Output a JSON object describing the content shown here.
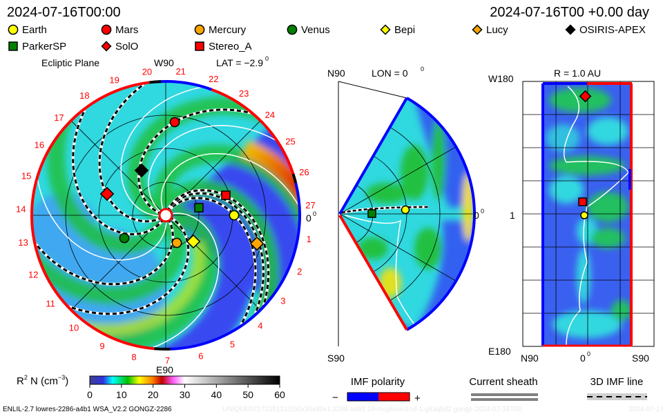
{
  "header": {
    "datetime_left": "2024-07-16T00:00",
    "datetime_right": "2024-07-16T00 +0.00 day"
  },
  "legend": {
    "items": [
      {
        "label": "Earth",
        "shape": "circle",
        "color": "#ffff00"
      },
      {
        "label": "Mars",
        "shape": "circle",
        "color": "#ff0000"
      },
      {
        "label": "Mercury",
        "shape": "circle",
        "color": "#ffa500"
      },
      {
        "label": "Venus",
        "shape": "circle",
        "color": "#008000"
      },
      {
        "label": "Bepi",
        "shape": "diamond",
        "color": "#ffff00"
      },
      {
        "label": "Lucy",
        "shape": "diamond",
        "color": "#ffa500"
      },
      {
        "label": "OSIRIS-APEX",
        "shape": "diamond",
        "color": "#000000"
      },
      {
        "label": "ParkerSP",
        "shape": "square",
        "color": "#008000"
      },
      {
        "label": "SolO",
        "shape": "diamond",
        "color": "#ff0000"
      },
      {
        "label": "Stereo_A",
        "shape": "square",
        "color": "#ff0000"
      }
    ]
  },
  "panels": {
    "ecliptic": {
      "title": "Ecliptic Plane",
      "lat_label": "LAT = −2.9",
      "degree": "0",
      "top_label": "W90",
      "bottom_label": "E90",
      "right_label": "0",
      "rim_numbers": [
        "1",
        "2",
        "3",
        "4",
        "5",
        "6",
        "7",
        "8",
        "9",
        "10",
        "11",
        "12",
        "13",
        "14",
        "15",
        "16",
        "17",
        "18",
        "19",
        "20",
        "21",
        "22",
        "23",
        "24",
        "25",
        "26",
        "27"
      ]
    },
    "meridional": {
      "top_label": "N90",
      "lon_label": "LON = 0",
      "degree": "0",
      "bottom_label": "S90",
      "right_label": "0"
    },
    "radial": {
      "title": "R = 1.0 AU",
      "top_label": "W180",
      "bottom_label": "E180",
      "mid_label": "1",
      "x_left": "N90",
      "x_mid": "0",
      "x_right": "S90"
    }
  },
  "colorbar": {
    "label_main": "R",
    "label_sup": "2",
    "label_rest": " N (cm",
    "label_exp": "−3",
    "label_close": ")",
    "ticks": [
      "0",
      "10",
      "20",
      "30",
      "40",
      "50",
      "60"
    ],
    "range": [
      0,
      60
    ]
  },
  "imf_legend": {
    "title": "IMF polarity",
    "minus": "−",
    "plus": "+",
    "negative_color": "#0000ff",
    "positive_color": "#ff0000"
  },
  "sheath_legend": {
    "title": "Current sheath"
  },
  "imf_line_legend": {
    "title": "3D IMF line"
  },
  "footer": {
    "model_info": "ENLIL-2.7 lowres-2286-a4b1 WSA_V2.2 GONGZ-2286",
    "run_id": "UNIQUE0717135121/256x30x90x1.2286-a4b1.16-mcplumn1cd-1.g53q5d2.gongz-2024-07-16T00",
    "run_date": "2024-07-17"
  },
  "chart_data": {
    "type": "heatmap",
    "quantity": "R2 N (cm-3)",
    "color_scale_range": [
      0,
      60
    ],
    "color_scale_ticks": [
      0,
      10,
      20,
      30,
      40,
      50,
      60
    ],
    "panels": [
      "Ecliptic Plane",
      "LON = 0",
      "R = 1.0 AU"
    ],
    "latitude": -2.9,
    "longitude": 0,
    "radius_au": 1.0,
    "time": "2024-07-16T00 +0.00 day"
  }
}
